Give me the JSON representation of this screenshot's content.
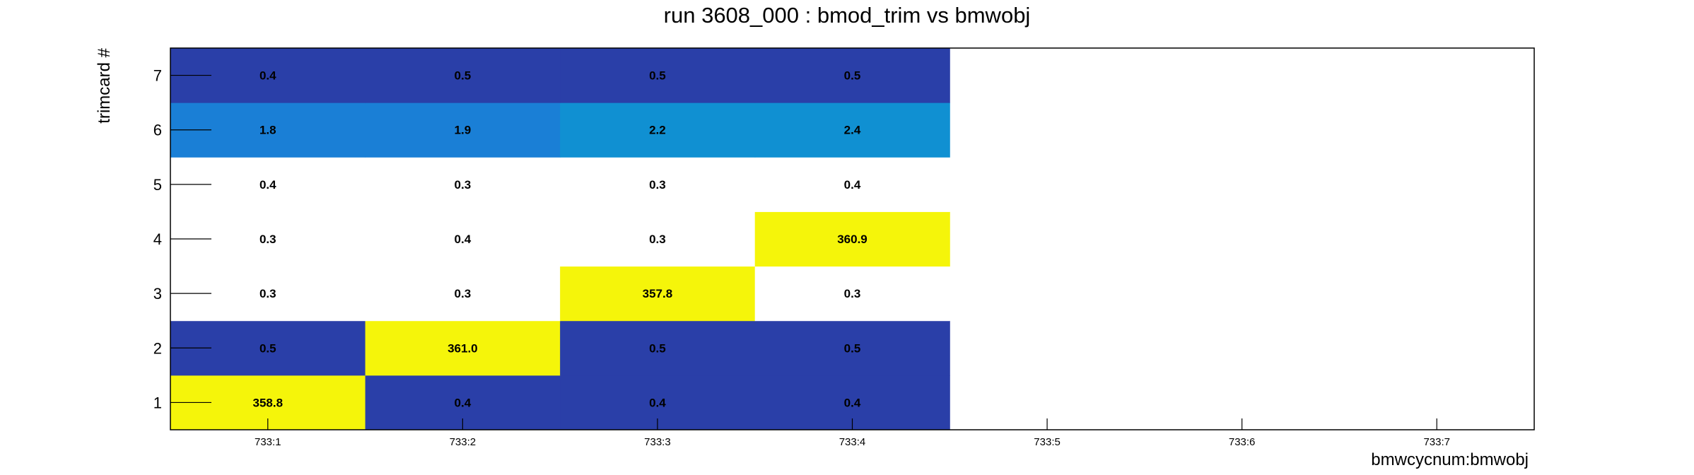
{
  "chart_data": {
    "type": "heatmap",
    "title": "run 3608_000 : bmod_trim vs bmwobj",
    "xlabel": "bmwcycnum:bmwobj",
    "ylabel": "trimcard #",
    "x_categories": [
      "733:1",
      "733:2",
      "733:3",
      "733:4",
      "733:5",
      "733:6",
      "733:7"
    ],
    "y_categories": [
      "1",
      "2",
      "3",
      "4",
      "5",
      "6",
      "7"
    ],
    "values": [
      [
        358.8,
        0.4,
        0.4,
        0.4,
        null,
        null,
        null
      ],
      [
        0.5,
        361.0,
        0.5,
        0.5,
        null,
        null,
        null
      ],
      [
        0.3,
        0.3,
        357.8,
        0.3,
        null,
        null,
        null
      ],
      [
        0.3,
        0.4,
        0.3,
        360.9,
        null,
        null,
        null
      ],
      [
        0.4,
        0.3,
        0.3,
        0.4,
        null,
        null,
        null
      ],
      [
        1.8,
        1.9,
        2.2,
        2.4,
        null,
        null,
        null
      ],
      [
        0.4,
        0.5,
        0.5,
        0.5,
        null,
        null,
        null
      ]
    ],
    "value_labels": [
      [
        "358.8",
        "0.4",
        "0.4",
        "0.4",
        "",
        "",
        ""
      ],
      [
        "0.5",
        "361.0",
        "0.5",
        "0.5",
        "",
        "",
        ""
      ],
      [
        "0.3",
        "0.3",
        "357.8",
        "0.3",
        "",
        "",
        ""
      ],
      [
        "0.3",
        "0.4",
        "0.3",
        "360.9",
        "",
        "",
        ""
      ],
      [
        "0.4",
        "0.3",
        "0.3",
        "0.4",
        "",
        "",
        ""
      ],
      [
        "1.8",
        "1.9",
        "2.2",
        "2.4",
        "",
        "",
        ""
      ],
      [
        "0.4",
        "0.5",
        "0.5",
        "0.5",
        "",
        "",
        ""
      ]
    ],
    "cell_colors": [
      [
        "#f5f50a",
        "#2a3fa8",
        "#2a3fa8",
        "#2a3fa8",
        null,
        null,
        null
      ],
      [
        "#2a3fa8",
        "#f5f50a",
        "#2a3fa8",
        "#2a3fa8",
        null,
        null,
        null
      ],
      [
        "#ffffff",
        "#ffffff",
        "#f5f50a",
        "#ffffff",
        null,
        null,
        null
      ],
      [
        "#ffffff",
        "#ffffff",
        "#ffffff",
        "#f5f50a",
        null,
        null,
        null
      ],
      [
        "#ffffff",
        "#ffffff",
        "#ffffff",
        "#ffffff",
        null,
        null,
        null
      ],
      [
        "#1a7fd6",
        "#1a7fd6",
        "#1090d2",
        "#1090d2",
        null,
        null,
        null
      ],
      [
        "#2a3fa8",
        "#2a3fa8",
        "#2a3fa8",
        "#2a3fa8",
        null,
        null,
        null
      ]
    ],
    "grid": false,
    "legend": "none"
  }
}
